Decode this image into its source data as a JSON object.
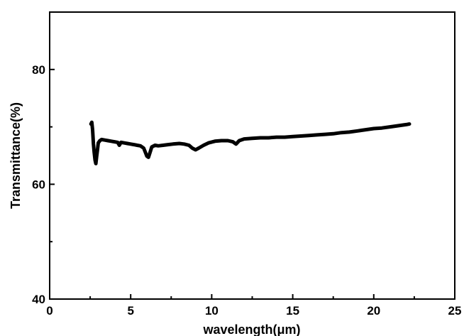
{
  "chart_data": {
    "type": "line",
    "title": "",
    "xlabel": "wavelength(μm)",
    "ylabel": "Transmittance(%)",
    "xlim": [
      0,
      25
    ],
    "ylim": [
      40,
      90
    ],
    "xticks": [
      0,
      5,
      10,
      15,
      20,
      25
    ],
    "yticks": [
      40,
      60,
      80
    ],
    "grid": false,
    "legend": "none",
    "line_color": "#000000",
    "series": [
      {
        "x": [
          2.55,
          2.6,
          2.65,
          2.7,
          2.75,
          2.8,
          2.85,
          2.9,
          2.95,
          3.0,
          3.1,
          3.2,
          3.4,
          3.6,
          3.8,
          4.0,
          4.2,
          4.3,
          4.4,
          4.6,
          4.8,
          5.0,
          5.2,
          5.4,
          5.6,
          5.8,
          5.9,
          6.0,
          6.1,
          6.2,
          6.3,
          6.5,
          6.7,
          7.0,
          7.3,
          7.6,
          8.0,
          8.3,
          8.6,
          8.8,
          9.0,
          9.2,
          9.5,
          9.8,
          10.2,
          10.6,
          11.0,
          11.3,
          11.5,
          11.7,
          12.0,
          12.5,
          13.0,
          13.5,
          14.0,
          14.5,
          15.0,
          15.5,
          16.0,
          16.5,
          17.0,
          17.5,
          18.0,
          18.5,
          19.0,
          19.5,
          20.0,
          20.5,
          21.0,
          21.5,
          22.0,
          22.2
        ],
        "y": [
          70.5,
          70.8,
          69.5,
          67.0,
          65.5,
          64.2,
          63.6,
          64.8,
          66.0,
          67.2,
          67.6,
          67.8,
          67.7,
          67.6,
          67.5,
          67.4,
          67.3,
          66.8,
          67.3,
          67.2,
          67.1,
          67.0,
          66.9,
          66.8,
          66.7,
          66.3,
          65.6,
          64.9,
          64.7,
          65.6,
          66.5,
          66.8,
          66.7,
          66.8,
          66.9,
          67.0,
          67.1,
          67.0,
          66.8,
          66.3,
          66.0,
          66.3,
          66.8,
          67.2,
          67.5,
          67.6,
          67.6,
          67.4,
          67.0,
          67.6,
          67.9,
          68.0,
          68.1,
          68.1,
          68.2,
          68.2,
          68.3,
          68.4,
          68.5,
          68.6,
          68.7,
          68.8,
          69.0,
          69.1,
          69.3,
          69.5,
          69.7,
          69.8,
          70.0,
          70.2,
          70.4,
          70.5
        ]
      }
    ]
  }
}
